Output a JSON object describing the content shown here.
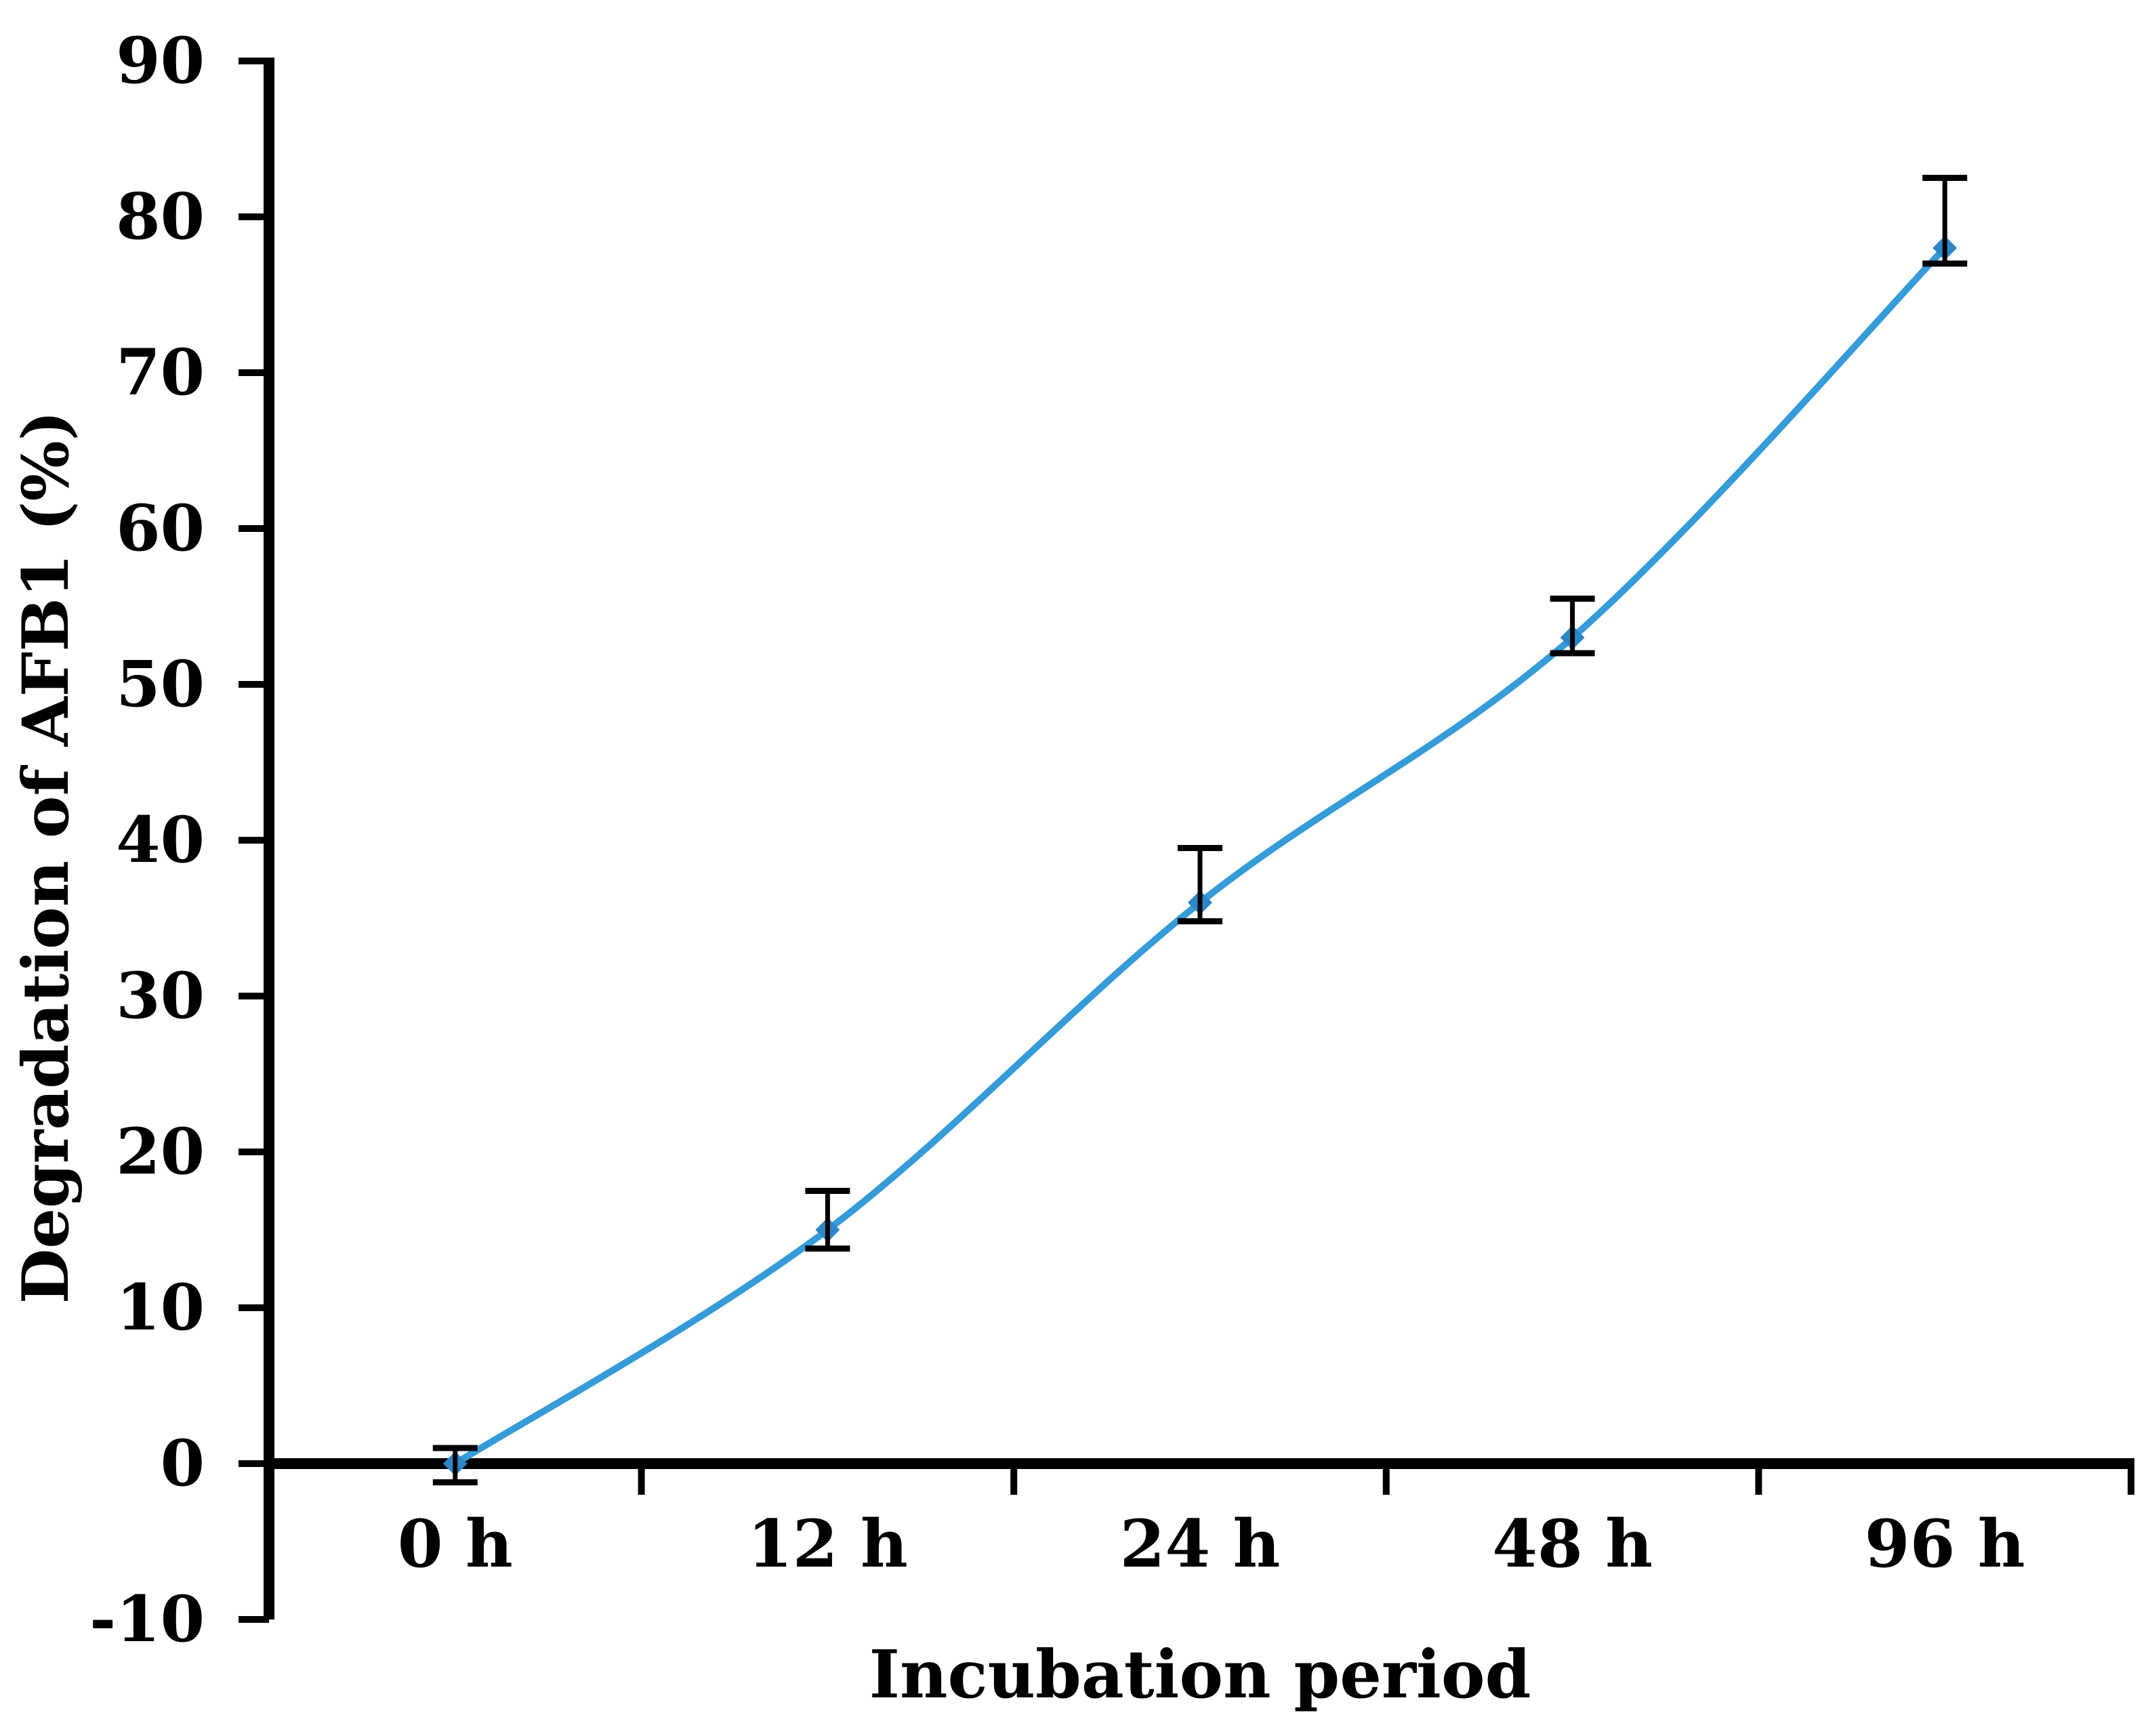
{
  "figure": {
    "background": "#FFFFFF"
  },
  "chart_data": {
    "type": "line",
    "title": "",
    "categories": [
      "0 h",
      "12 h",
      "24 h",
      "48 h",
      "96 h"
    ],
    "series": [
      {
        "name": "Degradation of AFB1",
        "values": [
          0,
          15,
          36,
          53,
          78
        ],
        "error_plus": [
          1.0,
          2.5,
          3.5,
          2.5,
          4.5
        ],
        "error_minus": [
          1.2,
          1.2,
          1.2,
          1.0,
          1.0
        ]
      }
    ],
    "xlabel": "Incubation period",
    "ylabel": "Degradation of AFB1 (%)",
    "ylim": [
      -10,
      90
    ],
    "ytick_step": 10,
    "yticks": [
      90,
      80,
      70,
      60,
      50,
      40,
      30,
      20,
      10,
      0,
      -10
    ],
    "ytick_labels": [
      "90",
      "80",
      "70",
      "60",
      "50",
      "40",
      "30",
      "20",
      "10",
      "0",
      "-10"
    ],
    "grid": false,
    "legend_position": "none",
    "line_color": "#359BD9",
    "marker_color": "#2C86C7",
    "marker_shape": "diamond",
    "error_bar_color": "#000000",
    "axis_color": "#000000"
  }
}
